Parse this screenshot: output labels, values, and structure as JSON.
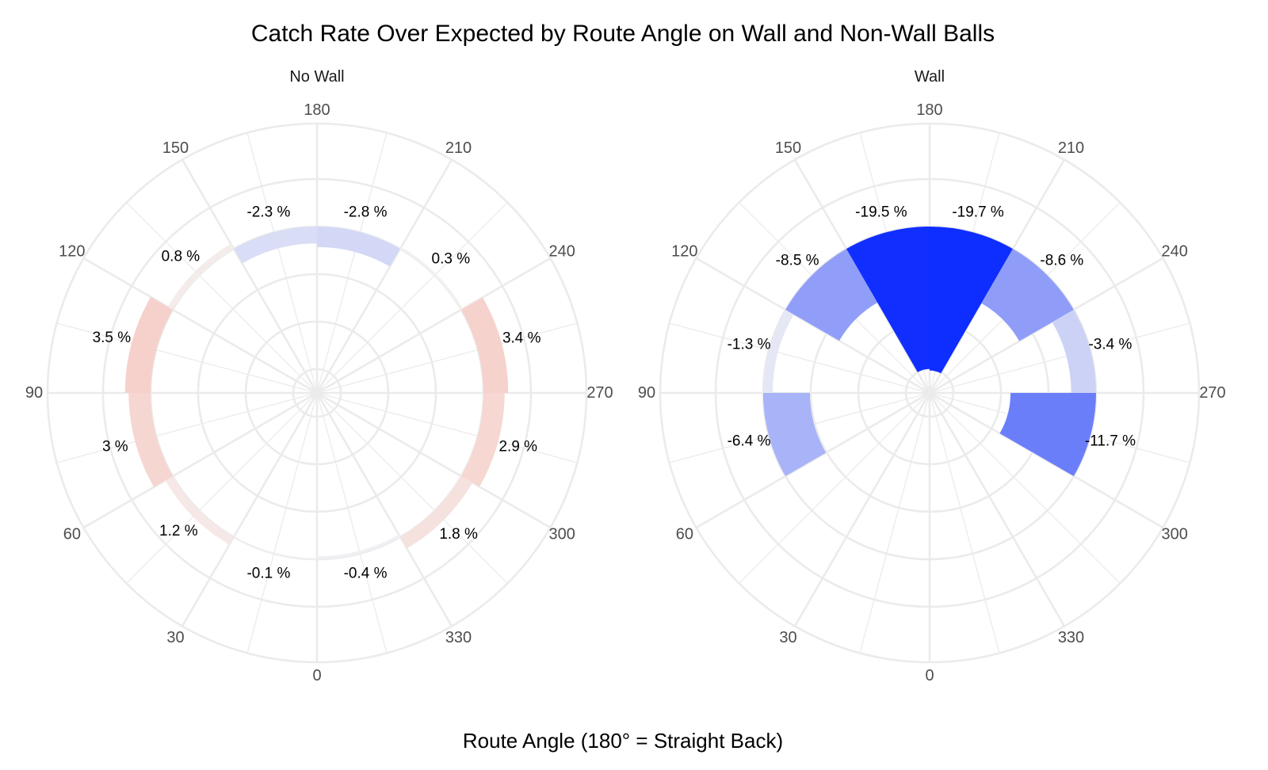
{
  "chart_data": {
    "type": "bar",
    "coordinate_system": "polar",
    "title": "Catch Rate Over Expected by Route Angle on Wall and Non-Wall Balls",
    "xlabel": "Route Angle (180° = Straight Back)",
    "ylabel": "",
    "angle_ticks": [
      "0",
      "30",
      "60",
      "90",
      "120",
      "150",
      "180",
      "210",
      "240",
      "270",
      "300",
      "330"
    ],
    "bar_width_degrees": 30,
    "value_range": [
      -20,
      20
    ],
    "grid": true,
    "legend": "none",
    "colors": {
      "negative_strong": "#0a2aff",
      "neutral": "#f4f4f4",
      "positive_strong": "#ff2a0a",
      "grid": "#ebebeb",
      "tick_text": "#4d4d4d"
    },
    "facets": [
      {
        "name": "No Wall",
        "bars": [
          {
            "angle": 45,
            "value": 1.2,
            "label": "1.2 %"
          },
          {
            "angle": 75,
            "value": 3,
            "label": "3 %"
          },
          {
            "angle": 105,
            "value": 3.5,
            "label": "3.5 %"
          },
          {
            "angle": 135,
            "value": 0.8,
            "label": "0.8 %"
          },
          {
            "angle": 165,
            "value": -2.3,
            "label": "-2.3 %"
          },
          {
            "angle": 195,
            "value": -2.8,
            "label": "-2.8 %"
          },
          {
            "angle": 225,
            "value": 0.3,
            "label": "0.3 %"
          },
          {
            "angle": 255,
            "value": 3.4,
            "label": "3.4 %"
          },
          {
            "angle": 285,
            "value": 2.9,
            "label": "2.9 %"
          },
          {
            "angle": 315,
            "value": 1.8,
            "label": "1.8 %"
          },
          {
            "angle": 345,
            "value": -0.4,
            "label": "-0.4 %"
          },
          {
            "angle": 15,
            "value": -0.1,
            "label": "-0.1 %"
          }
        ]
      },
      {
        "name": "Wall",
        "bars": [
          {
            "angle": 75,
            "value": -6.4,
            "label": "-6.4 %"
          },
          {
            "angle": 105,
            "value": -1.3,
            "label": "-1.3 %"
          },
          {
            "angle": 135,
            "value": -8.5,
            "label": "-8.5 %"
          },
          {
            "angle": 165,
            "value": -19.5,
            "label": "-19.5 %"
          },
          {
            "angle": 195,
            "value": -19.7,
            "label": "-19.7 %"
          },
          {
            "angle": 225,
            "value": -8.6,
            "label": "-8.6 %"
          },
          {
            "angle": 255,
            "value": -3.4,
            "label": "-3.4 %"
          },
          {
            "angle": 285,
            "value": -11.7,
            "label": "-11.7 %"
          }
        ]
      }
    ]
  }
}
